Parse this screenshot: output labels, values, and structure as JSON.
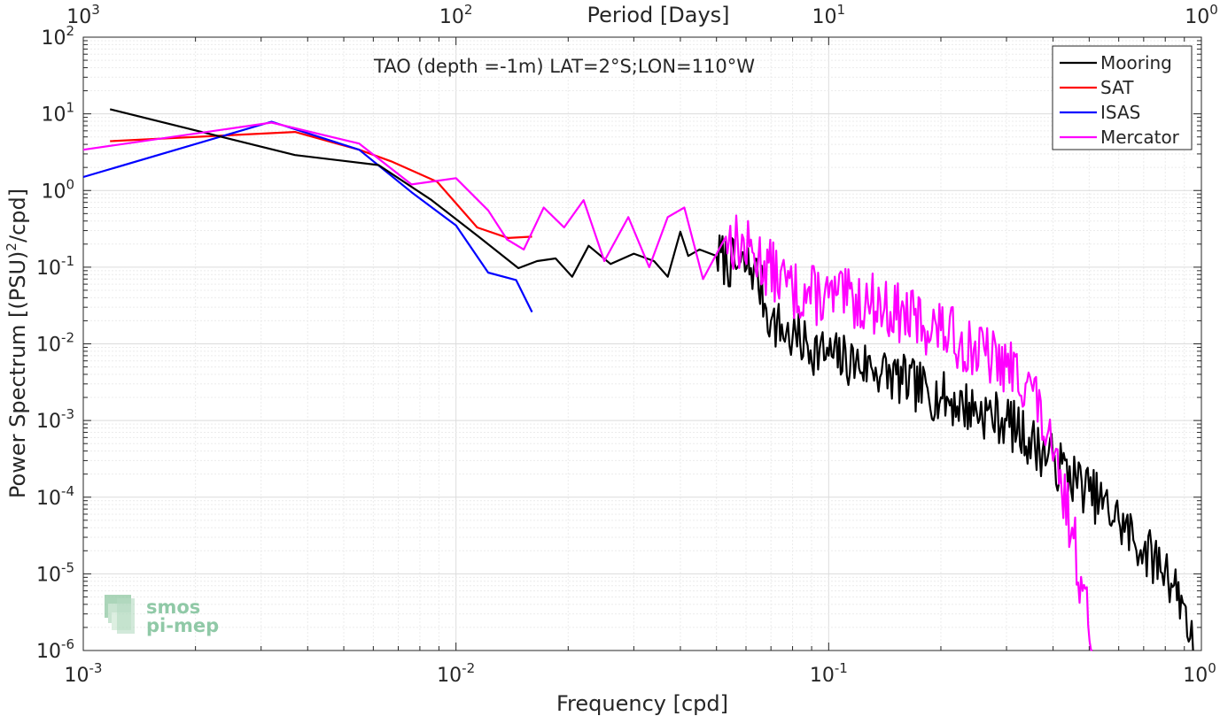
{
  "chart_data": {
    "type": "line",
    "title": "TAO (depth =-1m) LAT=2°S;LON=110°W",
    "xlabel": "Frequency [cpd]",
    "ylabel_main": "Power Spectrum [(PSU)",
    "ylabel_sup": "2",
    "ylabel_tail": "/cpd]",
    "top_xlabel": "Period [Days]",
    "xscale": "log",
    "yscale": "log",
    "xlim": [
      0.001,
      1
    ],
    "ylim": [
      1e-06,
      100
    ],
    "grid": true,
    "legend_position": "top-right",
    "x_ticks": [
      {
        "base": "10",
        "exp": "-3",
        "v": 0.001
      },
      {
        "base": "10",
        "exp": "-2",
        "v": 0.01
      },
      {
        "base": "10",
        "exp": "-1",
        "v": 0.1
      },
      {
        "base": "10",
        "exp": "0",
        "v": 1
      }
    ],
    "y_ticks": [
      {
        "base": "10",
        "exp": "2",
        "v": 100
      },
      {
        "base": "10",
        "exp": "1",
        "v": 10
      },
      {
        "base": "10",
        "exp": "0",
        "v": 1
      },
      {
        "base": "10",
        "exp": "-1",
        "v": 0.1
      },
      {
        "base": "10",
        "exp": "-2",
        "v": 0.01
      },
      {
        "base": "10",
        "exp": "-3",
        "v": 0.001
      },
      {
        "base": "10",
        "exp": "-4",
        "v": 0.0001
      },
      {
        "base": "10",
        "exp": "-5",
        "v": 1e-05
      },
      {
        "base": "10",
        "exp": "-6",
        "v": 1e-06
      }
    ],
    "top_ticks": [
      {
        "base": "10",
        "exp": "3",
        "period": 1000
      },
      {
        "base": "10",
        "exp": "2",
        "period": 100
      },
      {
        "base": "10",
        "exp": "1",
        "period": 10
      },
      {
        "base": "10",
        "exp": "0",
        "period": 1
      }
    ],
    "series": [
      {
        "name": "Mooring",
        "color": "#000000",
        "x": [],
        "y": []
      },
      {
        "name": "SAT",
        "color": "#ff0000",
        "x": [
          0.00118,
          0.0037,
          0.0055,
          0.0067,
          0.0089,
          0.0114,
          0.0138,
          0.016
        ],
        "y": [
          4.4,
          5.8,
          3.4,
          2.4,
          1.3,
          0.33,
          0.24,
          0.25
        ]
      },
      {
        "name": "ISAS",
        "color": "#0000ff",
        "x": [
          0.001,
          0.0032,
          0.0055,
          0.0076,
          0.01,
          0.0122,
          0.0145,
          0.016
        ],
        "y": [
          1.5,
          7.9,
          3.4,
          0.95,
          0.35,
          0.085,
          0.068,
          0.026
        ]
      },
      {
        "name": "Mercator",
        "color": "#ff00ff",
        "x": [],
        "y": []
      }
    ],
    "generated_series_hint": {
      "Mooring": {
        "anchors_x": [
          0.00118,
          0.0037,
          0.0062,
          0.0086,
          0.0115,
          0.0147,
          0.0165,
          0.0185,
          0.0205,
          0.0227,
          0.026,
          0.03,
          0.034,
          0.037,
          0.04,
          0.042,
          0.045,
          0.05,
          0.057,
          0.063,
          0.07,
          0.08,
          0.1,
          0.13,
          0.2,
          0.3,
          0.4,
          0.5,
          0.6,
          0.7,
          0.8,
          0.9,
          0.95
        ],
        "anchors_y": [
          11.5,
          2.9,
          2.15,
          0.75,
          0.25,
          0.097,
          0.12,
          0.13,
          0.075,
          0.19,
          0.11,
          0.15,
          0.12,
          0.075,
          0.29,
          0.14,
          0.17,
          0.14,
          0.1,
          0.1,
          0.02,
          0.012,
          0.007,
          0.005,
          0.002,
          0.001,
          0.0003,
          0.00012,
          5e-05,
          2e-05,
          1.2e-05,
          4e-06,
          1e-06
        ]
      },
      "Mercator": {
        "anchors_x": [
          0.001,
          0.0032,
          0.0055,
          0.0076,
          0.01,
          0.0122,
          0.0137,
          0.0152,
          0.0172,
          0.0195,
          0.022,
          0.025,
          0.029,
          0.033,
          0.037,
          0.041,
          0.046,
          0.053,
          0.063,
          0.08,
          0.1,
          0.13,
          0.2,
          0.3,
          0.35,
          0.4,
          0.45,
          0.48,
          0.51
        ],
        "anchors_y": [
          3.4,
          7.7,
          4.1,
          1.2,
          1.45,
          0.55,
          0.23,
          0.17,
          0.6,
          0.33,
          0.75,
          0.12,
          0.45,
          0.1,
          0.45,
          0.6,
          0.07,
          0.25,
          0.15,
          0.05,
          0.04,
          0.035,
          0.015,
          0.005,
          0.003,
          0.0003,
          4e-05,
          6e-06,
          1e-06
        ]
      }
    }
  },
  "logo": {
    "line1": "smos",
    "line2": "pi-mep"
  }
}
